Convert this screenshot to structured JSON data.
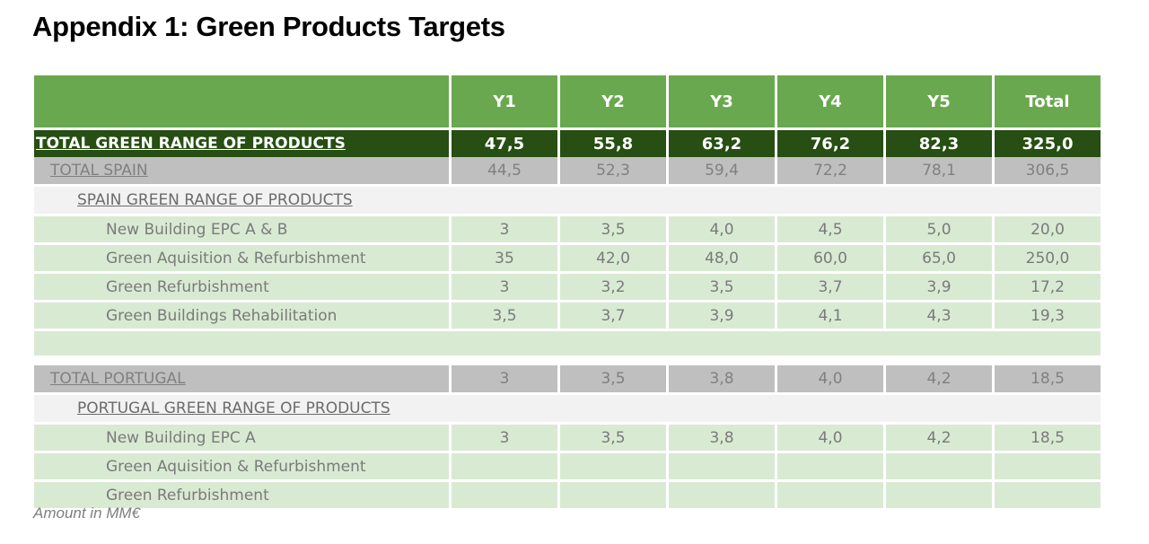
{
  "title": "Appendix 1: Green Products Targets",
  "columns": [
    "Y1",
    "Y2",
    "Y3",
    "Y4",
    "Y5",
    "Total"
  ],
  "grand_total": {
    "label": "TOTAL GREEN RANGE OF PRODUCTS",
    "values": [
      "47,5",
      "55,8",
      "63,2",
      "76,2",
      "82,3",
      "325,0"
    ]
  },
  "spain": {
    "total": {
      "label": "TOTAL SPAIN",
      "values": [
        "44,5",
        "52,3",
        "59,4",
        "72,2",
        "78,1",
        "306,5"
      ]
    },
    "section_label": "SPAIN GREEN RANGE OF PRODUCTS",
    "items": [
      {
        "label": "New Building EPC A & B",
        "values": [
          "3",
          "3,5",
          "4,0",
          "4,5",
          "5,0",
          "20,0"
        ]
      },
      {
        "label": "Green Aquisition & Refurbishment",
        "values": [
          "35",
          "42,0",
          "48,0",
          "60,0",
          "65,0",
          "250,0"
        ]
      },
      {
        "label": "Green Refurbishment",
        "values": [
          "3",
          "3,2",
          "3,5",
          "3,7",
          "3,9",
          "17,2"
        ]
      },
      {
        "label": "Green Buildings Rehabilitation",
        "values": [
          "3,5",
          "3,7",
          "3,9",
          "4,1",
          "4,3",
          "19,3"
        ]
      }
    ]
  },
  "portugal": {
    "total": {
      "label": "TOTAL PORTUGAL",
      "values": [
        "3",
        "3,5",
        "3,8",
        "4,0",
        "4,2",
        "18,5"
      ]
    },
    "section_label": "PORTUGAL GREEN RANGE OF PRODUCTS",
    "items": [
      {
        "label": "New Building EPC A",
        "values": [
          "3",
          "3,5",
          "3,8",
          "4,0",
          "4,2",
          "18,5"
        ]
      },
      {
        "label": "Green Aquisition & Refurbishment",
        "values": [
          "",
          "",
          "",
          "",
          "",
          ""
        ]
      },
      {
        "label": "Green Refurbishment",
        "values": [
          "",
          "",
          "",
          "",
          "",
          ""
        ]
      }
    ]
  },
  "note": "Amount in MM€",
  "colors": {
    "header_green": "#6aa84f",
    "dark_green": "#274e13",
    "total_grey": "#bfbfbf",
    "section_grey": "#f2f2f2",
    "item_light_green": "#d9ead3"
  }
}
